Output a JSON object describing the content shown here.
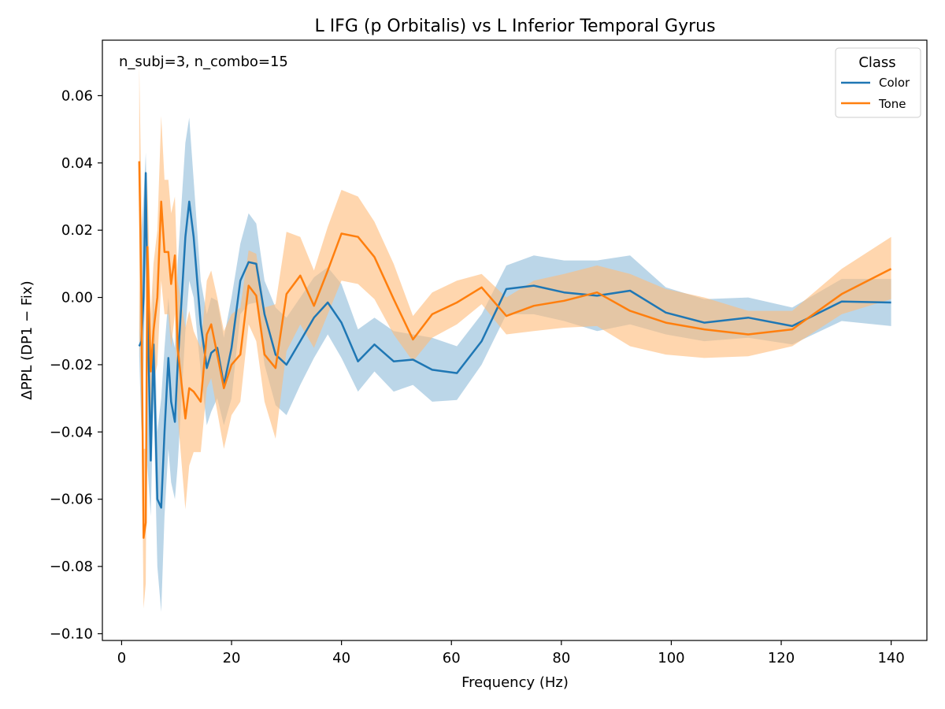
{
  "chart_data": {
    "type": "line",
    "title": "L IFG (p Orbitalis) vs L Inferior Temporal Gyrus",
    "xlabel": "Frequency (Hz)",
    "ylabel": "ΔPPL (DP1 − Fix)",
    "annotation": "n_subj=3, n_combo=15",
    "xlim": [
      -3.5,
      146.5
    ],
    "ylim": [
      -0.102,
      0.0765
    ],
    "xticks": [
      0,
      20,
      40,
      60,
      80,
      100,
      120,
      140
    ],
    "xtick_labels": [
      "0",
      "20",
      "40",
      "60",
      "80",
      "100",
      "120",
      "140"
    ],
    "yticks": [
      -0.1,
      -0.08,
      -0.06,
      -0.04,
      -0.02,
      0.0,
      0.02,
      0.04,
      0.06
    ],
    "ytick_labels": [
      "−0.10",
      "−0.08",
      "−0.06",
      "−0.04",
      "−0.02",
      "0.00",
      "0.02",
      "0.04",
      "0.06"
    ],
    "grid": false,
    "legend": {
      "title": "Class",
      "position": "top-right"
    },
    "series": [
      {
        "name": "Color",
        "color": "#1f77b4",
        "band_color": "#1f77b4",
        "band_opacity": 0.3,
        "x": [
          3.2,
          3.6,
          4.0,
          4.4,
          4.7,
          5.3,
          5.8,
          6.5,
          7.2,
          7.8,
          8.5,
          9.0,
          9.7,
          10.2,
          11.6,
          12.3,
          13.1,
          14.4,
          15.5,
          16.3,
          17.4,
          18.6,
          20.0,
          21.6,
          23.1,
          24.5,
          26.0,
          28.0,
          30.0,
          32.5,
          35.0,
          37.5,
          40.0,
          43.0,
          46.0,
          49.5,
          53.0,
          56.5,
          61.0,
          65.5,
          70.0,
          75.0,
          80.5,
          86.5,
          92.5,
          99.0,
          106.0,
          114.0,
          122.0,
          131.0,
          140.0
        ],
        "y": [
          -0.0145,
          -0.013,
          0.0,
          0.037,
          0.0,
          -0.0485,
          -0.014,
          -0.06,
          -0.0625,
          -0.04,
          -0.018,
          -0.031,
          -0.037,
          -0.02,
          0.018,
          0.0285,
          0.018,
          -0.008,
          -0.021,
          -0.0165,
          -0.015,
          -0.026,
          -0.015,
          0.005,
          0.0105,
          0.01,
          -0.005,
          -0.017,
          -0.02,
          -0.013,
          -0.006,
          -0.0015,
          -0.0075,
          -0.019,
          -0.014,
          -0.019,
          -0.0185,
          -0.0215,
          -0.0225,
          -0.013,
          0.0025,
          0.0035,
          0.0015,
          0.0005,
          0.002,
          -0.0045,
          -0.0075,
          -0.006,
          -0.0085,
          -0.0012,
          -0.0015
        ],
        "lower": [
          -0.0175,
          -0.04,
          -0.02,
          0.01,
          -0.05,
          -0.065,
          -0.03,
          -0.08,
          -0.0935,
          -0.065,
          -0.045,
          -0.055,
          -0.06,
          -0.05,
          -0.01,
          0.005,
          0.0,
          -0.022,
          -0.038,
          -0.034,
          -0.03,
          -0.038,
          -0.03,
          -0.005,
          -0.002,
          -0.0015,
          -0.02,
          -0.032,
          -0.035,
          -0.026,
          -0.018,
          -0.011,
          -0.018,
          -0.028,
          -0.022,
          -0.028,
          -0.026,
          -0.031,
          -0.0305,
          -0.02,
          -0.005,
          -0.005,
          -0.007,
          -0.01,
          -0.008,
          -0.011,
          -0.013,
          -0.012,
          -0.014,
          -0.007,
          -0.0085
        ],
        "upper": [
          -0.011,
          0.02,
          0.03,
          0.043,
          0.02,
          -0.03,
          0.005,
          -0.04,
          -0.03,
          -0.015,
          0.0,
          -0.01,
          -0.015,
          0.01,
          0.046,
          0.0535,
          0.035,
          0.005,
          -0.005,
          0.0,
          -0.001,
          -0.012,
          0.0,
          0.016,
          0.025,
          0.022,
          0.005,
          -0.003,
          -0.006,
          0.0,
          0.006,
          0.009,
          0.004,
          -0.0095,
          -0.006,
          -0.01,
          -0.011,
          -0.012,
          -0.0145,
          -0.005,
          0.0095,
          0.0125,
          0.011,
          0.011,
          0.0125,
          0.003,
          -0.0005,
          0.0,
          -0.003,
          0.0055,
          0.0055
        ]
      },
      {
        "name": "Tone",
        "color": "#ff7f0e",
        "band_color": "#ffbb78",
        "band_opacity": 0.6,
        "x": [
          3.2,
          3.6,
          4.0,
          4.4,
          4.7,
          5.3,
          5.8,
          6.5,
          7.2,
          7.8,
          8.5,
          9.0,
          9.7,
          10.2,
          11.6,
          12.3,
          13.1,
          14.4,
          15.5,
          16.3,
          17.4,
          18.6,
          20.0,
          21.6,
          23.1,
          24.5,
          26.0,
          28.0,
          30.0,
          32.5,
          35.0,
          37.5,
          40.0,
          43.0,
          46.0,
          49.5,
          53.0,
          56.5,
          61.0,
          65.5,
          70.0,
          75.0,
          80.5,
          86.5,
          92.5,
          99.0,
          106.0,
          114.0,
          122.0,
          131.0,
          140.0
        ],
        "y": [
          0.0405,
          0.0,
          -0.0715,
          -0.067,
          0.015,
          -0.022,
          -0.01,
          0.0,
          0.0285,
          0.0135,
          0.0135,
          0.004,
          0.0125,
          -0.015,
          -0.036,
          -0.027,
          -0.028,
          -0.031,
          -0.011,
          -0.008,
          -0.017,
          -0.027,
          -0.02,
          -0.017,
          0.0035,
          0.0005,
          -0.017,
          -0.021,
          0.001,
          0.0065,
          -0.0025,
          0.008,
          0.019,
          0.018,
          0.012,
          -0.0005,
          -0.0125,
          -0.005,
          -0.0015,
          0.003,
          -0.0055,
          -0.0025,
          -0.001,
          0.0015,
          -0.004,
          -0.0075,
          -0.0095,
          -0.011,
          -0.0095,
          0.001,
          0.0085
        ],
        "lower": [
          -0.01,
          -0.03,
          -0.0925,
          -0.085,
          -0.005,
          -0.038,
          -0.025,
          -0.02,
          0.005,
          -0.005,
          -0.005,
          -0.015,
          -0.005,
          -0.035,
          -0.063,
          -0.05,
          -0.046,
          -0.046,
          -0.027,
          -0.024,
          -0.034,
          -0.045,
          -0.035,
          -0.031,
          -0.008,
          -0.013,
          -0.031,
          -0.042,
          -0.016,
          -0.008,
          -0.015,
          -0.005,
          0.005,
          0.004,
          -0.0005,
          -0.011,
          -0.019,
          -0.012,
          -0.008,
          -0.002,
          -0.011,
          -0.01,
          -0.009,
          -0.0085,
          -0.0145,
          -0.017,
          -0.018,
          -0.0175,
          -0.0145,
          -0.005,
          -0.0005
        ],
        "upper": [
          0.069,
          0.03,
          -0.045,
          -0.045,
          0.035,
          -0.005,
          0.01,
          0.02,
          0.054,
          0.035,
          0.035,
          0.025,
          0.03,
          0.005,
          -0.009,
          -0.004,
          -0.01,
          -0.015,
          0.005,
          0.008,
          0.0,
          -0.01,
          -0.005,
          -0.003,
          0.014,
          0.013,
          -0.003,
          -0.002,
          0.0195,
          0.018,
          0.008,
          0.021,
          0.032,
          0.03,
          0.0225,
          0.01,
          -0.0055,
          0.0015,
          0.005,
          0.007,
          0.0,
          0.005,
          0.007,
          0.0095,
          0.007,
          0.0025,
          0.0,
          -0.004,
          -0.004,
          0.0085,
          0.018
        ]
      }
    ]
  }
}
